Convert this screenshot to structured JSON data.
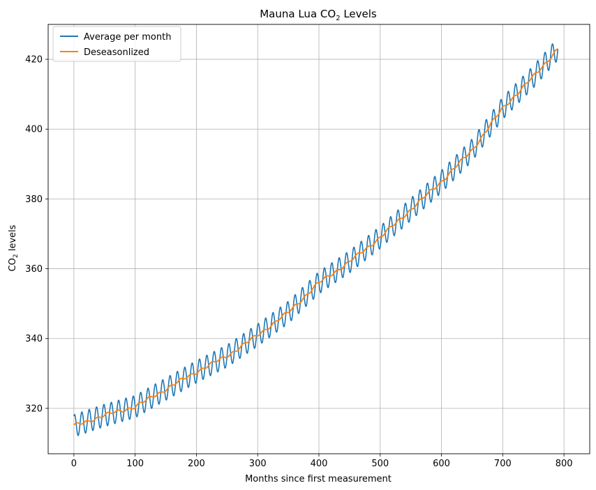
{
  "chart_data": {
    "type": "line",
    "title_main": "Mauna Lua CO",
    "title_sub": "2",
    "title_tail": " Levels",
    "xlabel": "Months since first measurement",
    "ylabel_main": "CO",
    "ylabel_sub": "2",
    "ylabel_tail": " levels",
    "xlim": [
      -42,
      842
    ],
    "ylim": [
      307,
      430
    ],
    "xticks": [
      0,
      100,
      200,
      300,
      400,
      500,
      600,
      700,
      800
    ],
    "xtick_labels": [
      "0",
      "100",
      "200",
      "300",
      "400",
      "500",
      "600",
      "700",
      "800"
    ],
    "yticks": [
      320,
      340,
      360,
      380,
      400,
      420
    ],
    "ytick_labels": [
      "320",
      "340",
      "360",
      "380",
      "400",
      "420"
    ],
    "grid": true,
    "legend_placement": "top-left",
    "trend_anchors": {
      "x": [
        0,
        50,
        100,
        150,
        200,
        250,
        300,
        350,
        400,
        450,
        500,
        550,
        600,
        650,
        700,
        750,
        790
      ],
      "y": [
        315,
        318,
        320.5,
        325.5,
        330.5,
        335,
        341,
        347.5,
        356,
        362,
        369,
        377,
        385,
        394,
        406,
        415,
        423
      ]
    },
    "seasonal": {
      "period_months": 12,
      "amplitude": 3.2,
      "start_month": 0,
      "end_month": 790
    },
    "series": [
      {
        "name": "Average per month",
        "color": "#1f77b4",
        "role": "seasonal"
      },
      {
        "name": "Deseasonlized",
        "color": "#ff7f0e",
        "role": "trend"
      }
    ]
  }
}
